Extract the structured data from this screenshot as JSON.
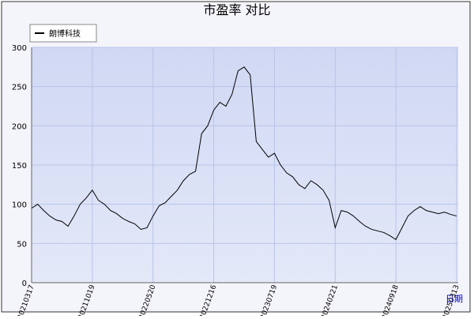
{
  "chart_data": {
    "type": "line",
    "title": "市盈率  对比",
    "x_label": "日期",
    "categories": [
      "20210317",
      null,
      null,
      null,
      null,
      null,
      null,
      null,
      null,
      null,
      "20211019",
      null,
      null,
      null,
      null,
      null,
      null,
      null,
      null,
      null,
      "20220520",
      null,
      null,
      null,
      null,
      null,
      null,
      null,
      null,
      null,
      "20221216",
      null,
      null,
      null,
      null,
      null,
      null,
      null,
      null,
      null,
      "20230719",
      null,
      null,
      null,
      null,
      null,
      null,
      null,
      null,
      null,
      "20240221",
      null,
      null,
      null,
      null,
      null,
      null,
      null,
      null,
      null,
      "20240918",
      null,
      null,
      null,
      null,
      null,
      null,
      null,
      null,
      null,
      "20250313"
    ],
    "series": [
      {
        "name": "朗博科技",
        "color": "#000000",
        "values": [
          95,
          100,
          92,
          85,
          80,
          78,
          72,
          85,
          100,
          108,
          118,
          105,
          100,
          92,
          88,
          82,
          78,
          75,
          68,
          70,
          85,
          98,
          102,
          110,
          118,
          130,
          138,
          142,
          190,
          200,
          220,
          230,
          225,
          240,
          270,
          275,
          265,
          180,
          170,
          160,
          165,
          150,
          140,
          135,
          125,
          120,
          130,
          125,
          118,
          105,
          70,
          92,
          90,
          85,
          78,
          72,
          68,
          66,
          64,
          60,
          55,
          70,
          85,
          92,
          97,
          92,
          90,
          88,
          90,
          87,
          85
        ]
      }
    ],
    "ylim": [
      0,
      300
    ],
    "yticks": [
      0,
      50,
      100,
      150,
      200,
      250,
      300
    ],
    "grid": true,
    "legend": "top-left"
  }
}
